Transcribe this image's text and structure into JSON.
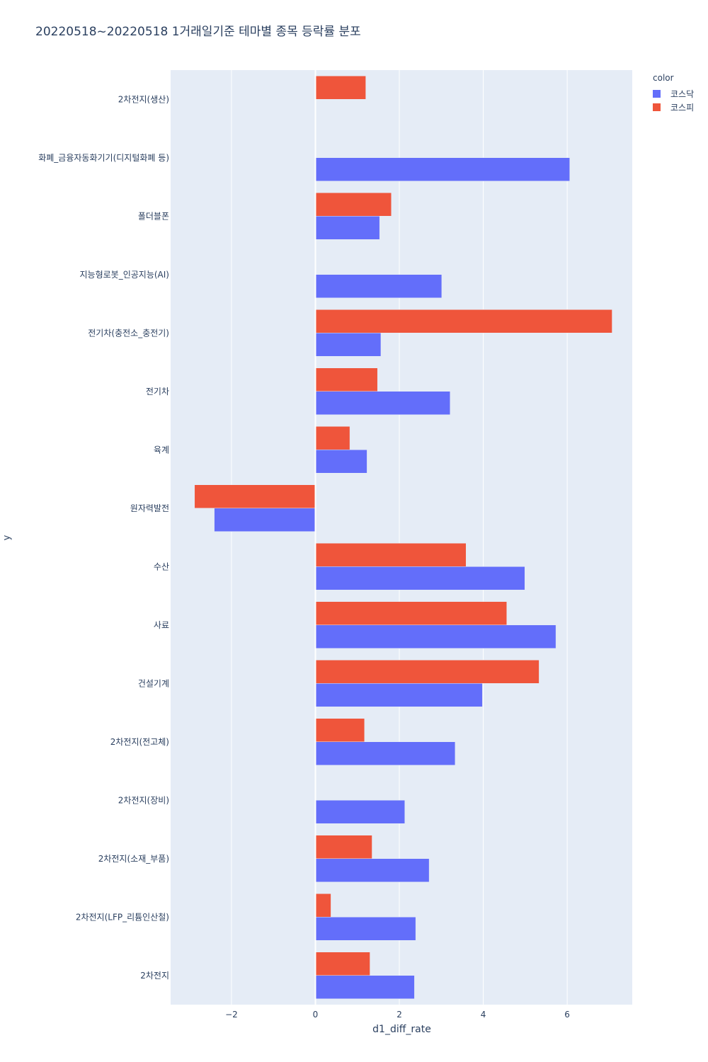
{
  "chart_data": {
    "type": "bar",
    "orientation": "horizontal",
    "barmode": "group",
    "title": "20220518~20220518 1거래일기준 테마별 종목 등락률 분포",
    "xlabel": "d1_diff_rate",
    "ylabel": "y",
    "xlim": [
      -3.45,
      7.55
    ],
    "xticks": [
      -2,
      0,
      2,
      4,
      6
    ],
    "xtick_labels": [
      "−2",
      "0",
      "2",
      "4",
      "6"
    ],
    "grid": true,
    "legend_title": "color",
    "legend_position": "top-right",
    "categories": [
      "2차전지(생산)",
      "화폐_금융자동화기기(디지털화폐 등)",
      "폴더블폰",
      "지능형로봇_인공지능(AI)",
      "전기차(충전소_충전기)",
      "전기차",
      "육계",
      "원자력발전",
      "수산",
      "사료",
      "건설기계",
      "2차전지(전고체)",
      "2차전지(장비)",
      "2차전지(소재_부품)",
      "2차전지(LFP_리튬인산철)",
      "2차전지"
    ],
    "series": [
      {
        "name": "코스닥",
        "color": "#636efa",
        "values": [
          null,
          6.06,
          1.53,
          3.01,
          1.56,
          3.21,
          1.23,
          -2.41,
          4.99,
          5.73,
          3.98,
          3.33,
          2.13,
          2.71,
          2.39,
          2.36
        ]
      },
      {
        "name": "코스피",
        "color": "#ef553b",
        "values": [
          1.2,
          null,
          1.81,
          null,
          7.07,
          1.48,
          0.82,
          -2.88,
          3.59,
          4.56,
          5.33,
          1.17,
          null,
          1.35,
          0.37,
          1.3
        ]
      }
    ]
  }
}
